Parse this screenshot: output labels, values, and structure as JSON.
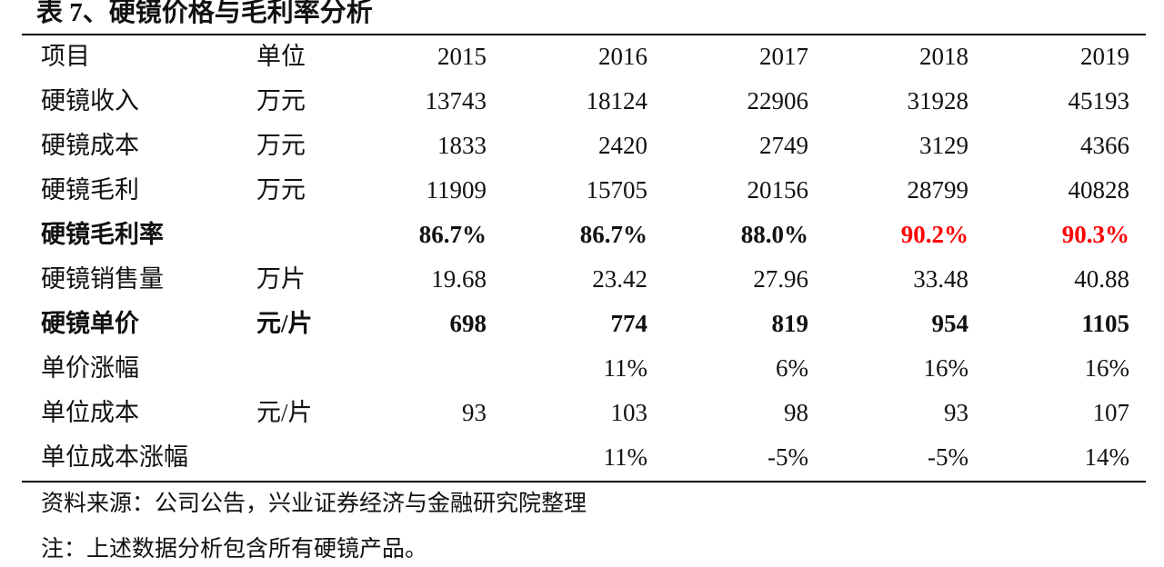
{
  "title": "表 7、硬镜价格与毛利率分析",
  "table": {
    "header": [
      "项目",
      "单位",
      "2015",
      "2016",
      "2017",
      "2018",
      "2019"
    ],
    "rows": [
      {
        "cells": [
          "硬镜收入",
          "万元",
          "13743",
          "18124",
          "22906",
          "31928",
          "45193"
        ],
        "bold": false
      },
      {
        "cells": [
          "硬镜成本",
          "万元",
          "1833",
          "2420",
          "2749",
          "3129",
          "4366"
        ],
        "bold": false
      },
      {
        "cells": [
          "硬镜毛利",
          "万元",
          "11909",
          "15705",
          "20156",
          "28799",
          "40828"
        ],
        "bold": false
      },
      {
        "cells": [
          "硬镜毛利率",
          null,
          "86.7%",
          "86.7%",
          "88.0%",
          {
            "text": "90.2%",
            "color": "#ff0000"
          },
          {
            "text": "90.3%",
            "color": "#ff0000"
          }
        ],
        "bold": true
      },
      {
        "cells": [
          "硬镜销售量",
          "万片",
          "19.68",
          "23.42",
          "27.96",
          "33.48",
          "40.88"
        ],
        "bold": false
      },
      {
        "cells": [
          "硬镜单价",
          "元/片",
          "698",
          "774",
          "819",
          "954",
          "1105"
        ],
        "bold": true
      },
      {
        "cells": [
          "单价涨幅",
          null,
          null,
          "11%",
          "6%",
          "16%",
          "16%"
        ],
        "bold": false
      },
      {
        "cells": [
          "单位成本",
          "元/片",
          "93",
          "103",
          "98",
          "93",
          "107"
        ],
        "bold": false
      },
      {
        "cells": [
          "单位成本涨幅",
          null,
          null,
          "11%",
          "-5%",
          "-5%",
          "14%"
        ],
        "bold": false
      }
    ]
  },
  "notes": [
    "资料来源：公司公告，兴业证券经济与金融研究院整理",
    "注：上述数据分析包含所有硬镜产品。"
  ]
}
